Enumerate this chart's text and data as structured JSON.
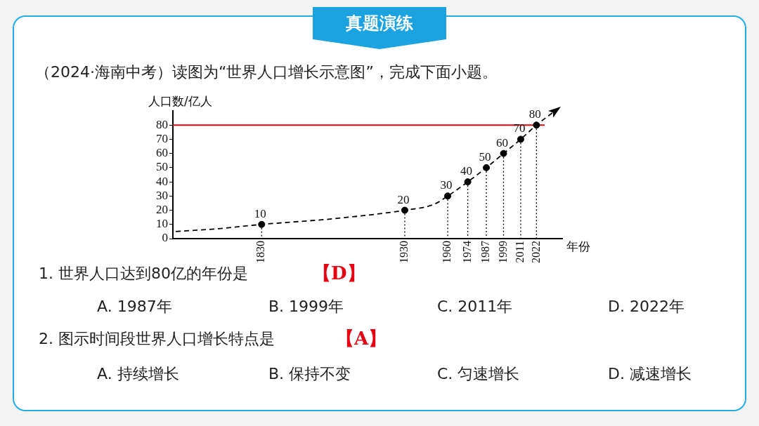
{
  "chart_data": {
    "type": "line",
    "title": "（2024·海南中考）读图为“世界人口增长示意图”，完成下面小题。",
    "xlabel": "年份",
    "ylabel": "人口数/亿人",
    "xlim": [
      1768,
      2040
    ],
    "ylim": [
      0,
      90
    ],
    "xticks": [
      1830,
      1930,
      1960,
      1974,
      1987,
      1999,
      2011,
      2022
    ],
    "yticks": [
      0,
      10,
      20,
      30,
      40,
      50,
      60,
      70,
      80
    ],
    "line_style": "dashed",
    "legend": false,
    "series": [
      {
        "color": "#000000",
        "marker": "none",
        "x": [
          1770,
          1800,
          1830,
          1880,
          1930,
          1950,
          1960,
          1974,
          1987,
          1999,
          2011,
          2022,
          2035
        ],
        "values": [
          5,
          7,
          10,
          14,
          20,
          24,
          30,
          40,
          50,
          60,
          70,
          80,
          90
        ]
      },
      {
        "type": "scatter",
        "color": "#000000",
        "marker": "circle",
        "x": [
          1830,
          1930,
          1960,
          1974,
          1987,
          1999,
          2011,
          2022
        ],
        "values": [
          10,
          20,
          30,
          40,
          50,
          60,
          70,
          80
        ],
        "value_labels": [
          "10",
          "20",
          "30",
          "40",
          "50",
          "60",
          "70",
          "80"
        ]
      }
    ],
    "ref_lines": [
      {
        "axis": "y",
        "value": 80,
        "color": "#e60012"
      }
    ],
    "annotations": [
      "真题演练",
      "1. 世界人口达到80亿的年份是",
      "【D】",
      "A. 1987年",
      "B. 1999年",
      "C. 2011年",
      "D. 2022年",
      "2. 图示时间段世界人口增长特点是",
      "【A】",
      "A. 持续增长",
      "B. 保持不变",
      "C. 匀速增长",
      "D. 减速增长"
    ]
  }
}
